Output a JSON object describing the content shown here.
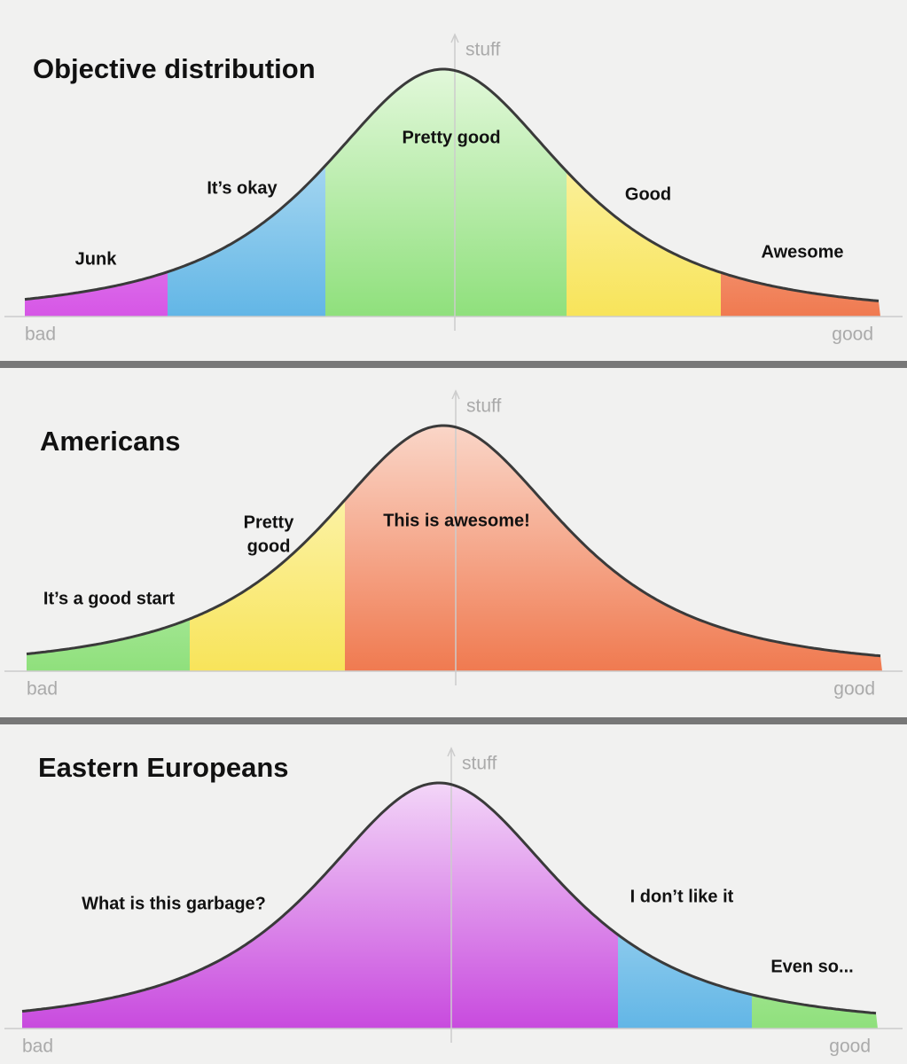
{
  "panels": [
    {
      "title": "Objective distribution",
      "axis": {
        "y": "stuff",
        "x_left": "bad",
        "x_right": "good"
      },
      "regions": [
        {
          "lines": [
            "Junk"
          ]
        },
        {
          "lines": [
            "It’s okay"
          ]
        },
        {
          "lines": [
            "Pretty good"
          ]
        },
        {
          "lines": [
            "Good"
          ]
        },
        {
          "lines": [
            "Awesome"
          ]
        }
      ]
    },
    {
      "title": "Americans",
      "axis": {
        "y": "stuff",
        "x_left": "bad",
        "x_right": "good"
      },
      "regions": [
        {
          "lines": [
            "It’s a good start"
          ]
        },
        {
          "lines": [
            "Pretty",
            "good"
          ]
        },
        {
          "lines": [
            "This is awesome!"
          ]
        }
      ]
    },
    {
      "title": "Eastern Europeans",
      "axis": {
        "y": "stuff",
        "x_left": "bad",
        "x_right": "good"
      },
      "regions": [
        {
          "lines": [
            "What is this garbage?"
          ]
        },
        {
          "lines": [
            "I don’t like it"
          ]
        },
        {
          "lines": [
            "Even so..."
          ]
        }
      ]
    }
  ]
}
